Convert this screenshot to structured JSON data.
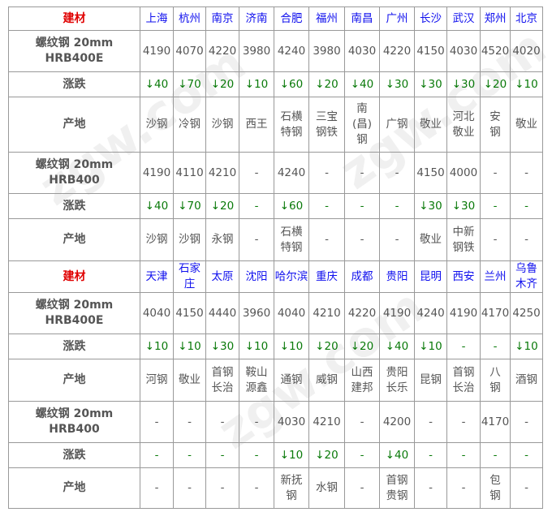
{
  "colors": {
    "material_label": "#e00000",
    "city": "#1010ee",
    "change": "#0a7a0a",
    "text": "#555555"
  },
  "sections": [
    {
      "material_label": "建材",
      "cities": [
        "上海",
        "杭州",
        "南京",
        "济南",
        "合肥",
        "福州",
        "南昌",
        "广州",
        "长沙",
        "武汉",
        "郑州",
        "北京"
      ],
      "rows": [
        {
          "label": "螺纹钢 20mm HRB400E",
          "type": "price",
          "values": [
            "4190",
            "4070",
            "4220",
            "3980",
            "4240",
            "3980",
            "4030",
            "4220",
            "4150",
            "4030",
            "4520",
            "4020"
          ]
        },
        {
          "label": "涨跌",
          "type": "change",
          "values": [
            "↓40",
            "↓70",
            "↓20",
            "↓10",
            "↓60",
            "↓20",
            "↓40",
            "↓30",
            "↓30",
            "↓30",
            "↓20",
            "↓10"
          ]
        },
        {
          "label": "产地",
          "type": "origin",
          "values": [
            "沙钢",
            "冷钢",
            "沙钢",
            "西王",
            "石横特钢",
            "三宝钢铁",
            "南(昌)钢",
            "广钢",
            "敬业",
            "河北敬业",
            "安钢",
            "敬业"
          ]
        },
        {
          "label": "螺纹钢 20mm HRB400",
          "type": "price",
          "values": [
            "4190",
            "4110",
            "4210",
            "-",
            "4240",
            "-",
            "-",
            "-",
            "4150",
            "4000",
            "-",
            "-"
          ]
        },
        {
          "label": "涨跌",
          "type": "change",
          "values": [
            "↓40",
            "↓70",
            "↓20",
            "-",
            "↓60",
            "-",
            "-",
            "-",
            "↓30",
            "↓30",
            "-",
            "-"
          ]
        },
        {
          "label": "产地",
          "type": "origin",
          "values": [
            "沙钢",
            "沙钢",
            "永钢",
            "-",
            "石横特钢",
            "-",
            "-",
            "-",
            "敬业",
            "中新钢铁",
            "-",
            "-"
          ]
        }
      ]
    },
    {
      "material_label": "建材",
      "cities": [
        "天津",
        "石家庄",
        "太原",
        "沈阳",
        "哈尔滨",
        "重庆",
        "成都",
        "贵阳",
        "昆明",
        "西安",
        "兰州",
        "乌鲁木齐"
      ],
      "rows": [
        {
          "label": "螺纹钢 20mm HRB400E",
          "type": "price",
          "values": [
            "4040",
            "4150",
            "4440",
            "3960",
            "4040",
            "4210",
            "4220",
            "4190",
            "4240",
            "4190",
            "4170",
            "4250"
          ]
        },
        {
          "label": "涨跌",
          "type": "change",
          "values": [
            "↓10",
            "↓10",
            "↓30",
            "↓10",
            "↓10",
            "↓20",
            "↓20",
            "↓40",
            "↓10",
            "-",
            "-",
            "↓10"
          ]
        },
        {
          "label": "产地",
          "type": "origin",
          "values": [
            "河钢",
            "敬业",
            "首钢长治",
            "鞍山源鑫",
            "通钢",
            "威钢",
            "山西建邦",
            "贵阳长乐",
            "昆钢",
            "首钢长治",
            "八钢",
            "酒钢"
          ]
        },
        {
          "label": "螺纹钢 20mm HRB400",
          "type": "price",
          "values": [
            "-",
            "-",
            "-",
            "-",
            "4030",
            "4210",
            "-",
            "4200",
            "-",
            "-",
            "4170",
            "-"
          ]
        },
        {
          "label": "涨跌",
          "type": "change",
          "values": [
            "-",
            "-",
            "-",
            "-",
            "↓10",
            "↓20",
            "-",
            "↓40",
            "-",
            "-",
            "-",
            "-"
          ]
        },
        {
          "label": "产地",
          "type": "origin",
          "values": [
            "-",
            "-",
            "-",
            "-",
            "新抚钢",
            "水钢",
            "-",
            "首钢贵钢",
            "-",
            "-",
            "包钢",
            "-"
          ]
        }
      ]
    }
  ],
  "watermark": "zgw.com 中钢网 中国互联网百强企业"
}
